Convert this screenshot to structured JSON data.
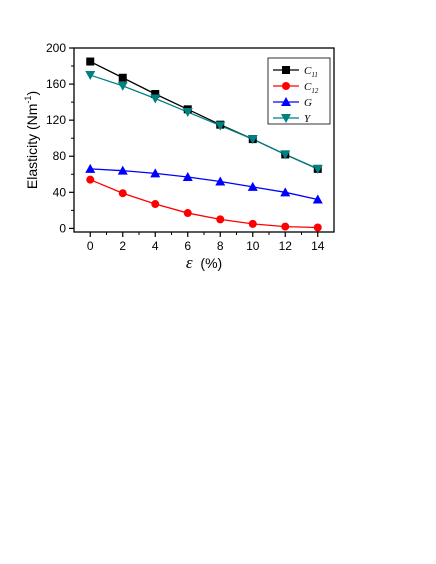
{
  "chart_data": {
    "type": "line",
    "xlabel_symbol": "ε",
    "xlabel_unit": "(%)",
    "ylabel_main": "Elasticity (Nm",
    "ylabel_sup": "-1",
    "ylabel_close": ")",
    "x": [
      0,
      2,
      4,
      6,
      8,
      10,
      12,
      14
    ],
    "xticks": [
      "0",
      "2",
      "4",
      "6",
      "8",
      "10",
      "12",
      "14"
    ],
    "yticks": [
      "0",
      "40",
      "80",
      "120",
      "160",
      "200"
    ],
    "xlim": [
      -1,
      15
    ],
    "ylim": [
      -4,
      200
    ],
    "legend_position": "top-right",
    "series": [
      {
        "name": "C",
        "sub": "11",
        "color": "#000000",
        "marker": "square",
        "values": [
          185,
          167,
          149,
          132,
          115,
          99,
          82,
          66
        ]
      },
      {
        "name": "C",
        "sub": "12",
        "color": "#ff0000",
        "marker": "circle",
        "values": [
          54,
          39,
          27,
          17,
          10,
          5,
          2,
          1
        ]
      },
      {
        "name": "G",
        "sub": "",
        "color": "#0000ff",
        "marker": "triangle-up",
        "values": [
          66,
          64,
          61,
          57,
          52,
          46,
          40,
          32
        ]
      },
      {
        "name": "Y",
        "sub": "",
        "color": "#008080",
        "marker": "triangle-down",
        "values": [
          170,
          158,
          144,
          129,
          114,
          99,
          82,
          66
        ]
      }
    ]
  }
}
